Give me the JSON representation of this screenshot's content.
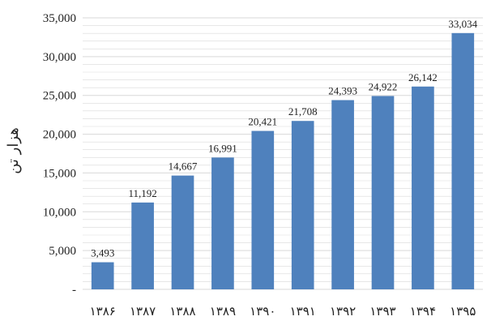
{
  "chart_data": {
    "type": "bar",
    "title": "",
    "xlabel": "",
    "ylabel": "هزار تن",
    "categories": [
      "۱۳۸۶",
      "۱۳۸۷",
      "۱۳۸۸",
      "۱۳۸۹",
      "۱۳۹۰",
      "۱۳۹۱",
      "۱۳۹۲",
      "۱۳۹۳",
      "۱۳۹۴",
      "۱۳۹۵"
    ],
    "values": [
      3493,
      11192,
      14667,
      16991,
      20421,
      21708,
      24393,
      24922,
      26142,
      33034
    ],
    "value_labels": [
      "3,493",
      "11,192",
      "14,667",
      "16,991",
      "20,421",
      "21,708",
      "24,393",
      "24,922",
      "26,142",
      "33,034"
    ],
    "ylim": [
      0,
      35000
    ],
    "y_ticks": [
      0,
      5000,
      10000,
      15000,
      20000,
      25000,
      30000,
      35000
    ],
    "y_tick_labels": [
      "-",
      "5,000",
      "10,000",
      "15,000",
      "20,000",
      "25,000",
      "30,000",
      "35,000"
    ],
    "grid": true,
    "legend": "none",
    "colors": {
      "bar": "#4f81bd",
      "grid": "#d9d9d9",
      "text": "#222222"
    }
  }
}
